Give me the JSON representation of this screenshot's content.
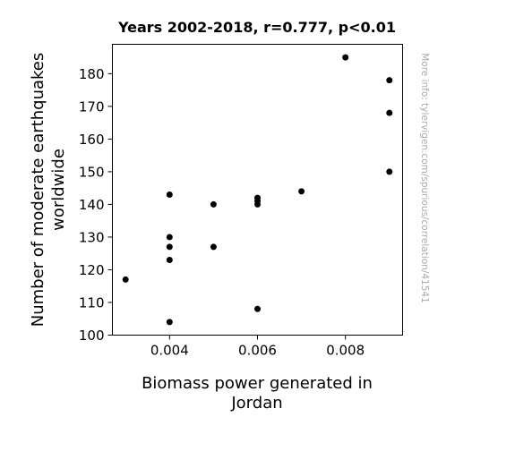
{
  "chart_data": {
    "type": "scatter",
    "title": "Years 2002-2018, r=0.777, p<0.01",
    "xlabel": [
      "Biomass power generated in",
      "Jordan"
    ],
    "ylabel": [
      "Number of moderate earthquakes",
      "worldwide"
    ],
    "xlim": [
      0.0027,
      0.0093
    ],
    "ylim": [
      100,
      189
    ],
    "xticks": [
      0.004,
      0.006,
      0.008
    ],
    "xtick_labels": [
      "0.004",
      "0.006",
      "0.008"
    ],
    "yticks": [
      100,
      110,
      120,
      130,
      140,
      150,
      160,
      170,
      180
    ],
    "ytick_labels": [
      "100",
      "110",
      "120",
      "130",
      "140",
      "150",
      "160",
      "170",
      "180"
    ],
    "grid": false,
    "points": [
      {
        "x": 0.003,
        "y": 117
      },
      {
        "x": 0.004,
        "y": 143
      },
      {
        "x": 0.004,
        "y": 130
      },
      {
        "x": 0.004,
        "y": 127
      },
      {
        "x": 0.004,
        "y": 123
      },
      {
        "x": 0.004,
        "y": 104
      },
      {
        "x": 0.005,
        "y": 140
      },
      {
        "x": 0.005,
        "y": 127
      },
      {
        "x": 0.006,
        "y": 142
      },
      {
        "x": 0.006,
        "y": 141
      },
      {
        "x": 0.006,
        "y": 140
      },
      {
        "x": 0.006,
        "y": 108
      },
      {
        "x": 0.007,
        "y": 144
      },
      {
        "x": 0.008,
        "y": 185
      },
      {
        "x": 0.009,
        "y": 178
      },
      {
        "x": 0.009,
        "y": 168
      },
      {
        "x": 0.009,
        "y": 150
      }
    ],
    "marker_color": "#000000",
    "side_note": "More info: tylervigen.com/spurious/correlation/41541"
  }
}
